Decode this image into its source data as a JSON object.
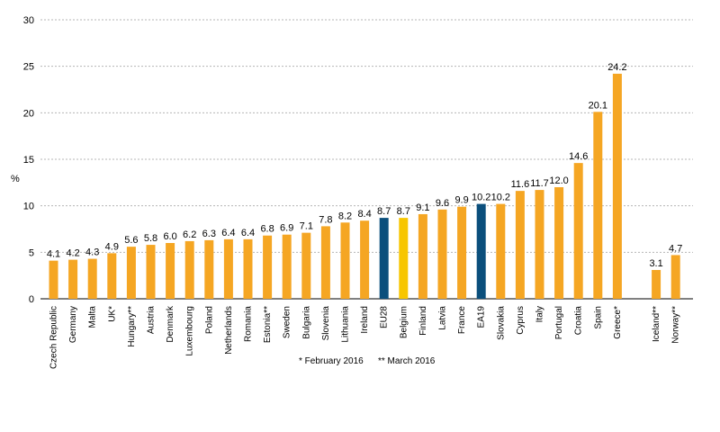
{
  "chart_data": {
    "type": "bar",
    "ylabel": "%",
    "ylim": [
      0,
      30
    ],
    "yticks": [
      0,
      5,
      10,
      15,
      20,
      25,
      30
    ],
    "grid": true,
    "categories": [
      "Czech Republic",
      "Germany",
      "Malta",
      "UK*",
      "Hungary**",
      "Austria",
      "Denmark",
      "Luxembourg",
      "Poland",
      "Netherlands",
      "Romania",
      "Estonia**",
      "Sweden",
      "Bulgaria",
      "Slovenia",
      "Lithuania",
      "Ireland",
      "EU28",
      "Belgium",
      "Finland",
      "Latvia",
      "France",
      "EA19",
      "Slovakia",
      "Cyprus",
      "Italy",
      "Portugal",
      "Croatia",
      "Spain",
      "Greece*",
      "",
      "Iceland**",
      "Norway**"
    ],
    "values": [
      4.1,
      4.2,
      4.3,
      4.9,
      5.6,
      5.8,
      6.0,
      6.2,
      6.3,
      6.4,
      6.4,
      6.8,
      6.9,
      7.1,
      7.8,
      8.2,
      8.4,
      8.7,
      8.7,
      9.1,
      9.6,
      9.9,
      10.2,
      10.2,
      11.6,
      11.7,
      12.0,
      14.6,
      20.1,
      24.2,
      null,
      3.1,
      4.7
    ],
    "value_labels": [
      "4.1",
      "4.2",
      "4.3",
      "4.9",
      "5.6",
      "5.8",
      "6.0",
      "6.2",
      "6.3",
      "6.4",
      "6.4",
      "6.8",
      "6.9",
      "7.1",
      "7.8",
      "8.2",
      "8.4",
      "8.7",
      "8.7",
      "9.1",
      "9.6",
      "9.9",
      "10.2",
      "10.2",
      "11.6",
      "11.7",
      "12.0",
      "14.6",
      "20.1",
      "24.2",
      "",
      "3.1",
      "4.7"
    ],
    "bar_colors": [
      "#f5a623",
      "#f5a623",
      "#f5a623",
      "#f5a623",
      "#f5a623",
      "#f5a623",
      "#f5a623",
      "#f5a623",
      "#f5a623",
      "#f5a623",
      "#f5a623",
      "#f5a623",
      "#f5a623",
      "#f5a623",
      "#f5a623",
      "#f5a623",
      "#f5a623",
      "#0b4f7c",
      "#f7c600",
      "#f5a623",
      "#f5a623",
      "#f5a623",
      "#0b4f7c",
      "#f5a623",
      "#f5a623",
      "#f5a623",
      "#f5a623",
      "#f5a623",
      "#f5a623",
      "#f5a623",
      "",
      "#f5a623",
      "#f5a623"
    ]
  },
  "footnotes": {
    "feb": "*  February  2016",
    "mar": "** March  2016"
  }
}
